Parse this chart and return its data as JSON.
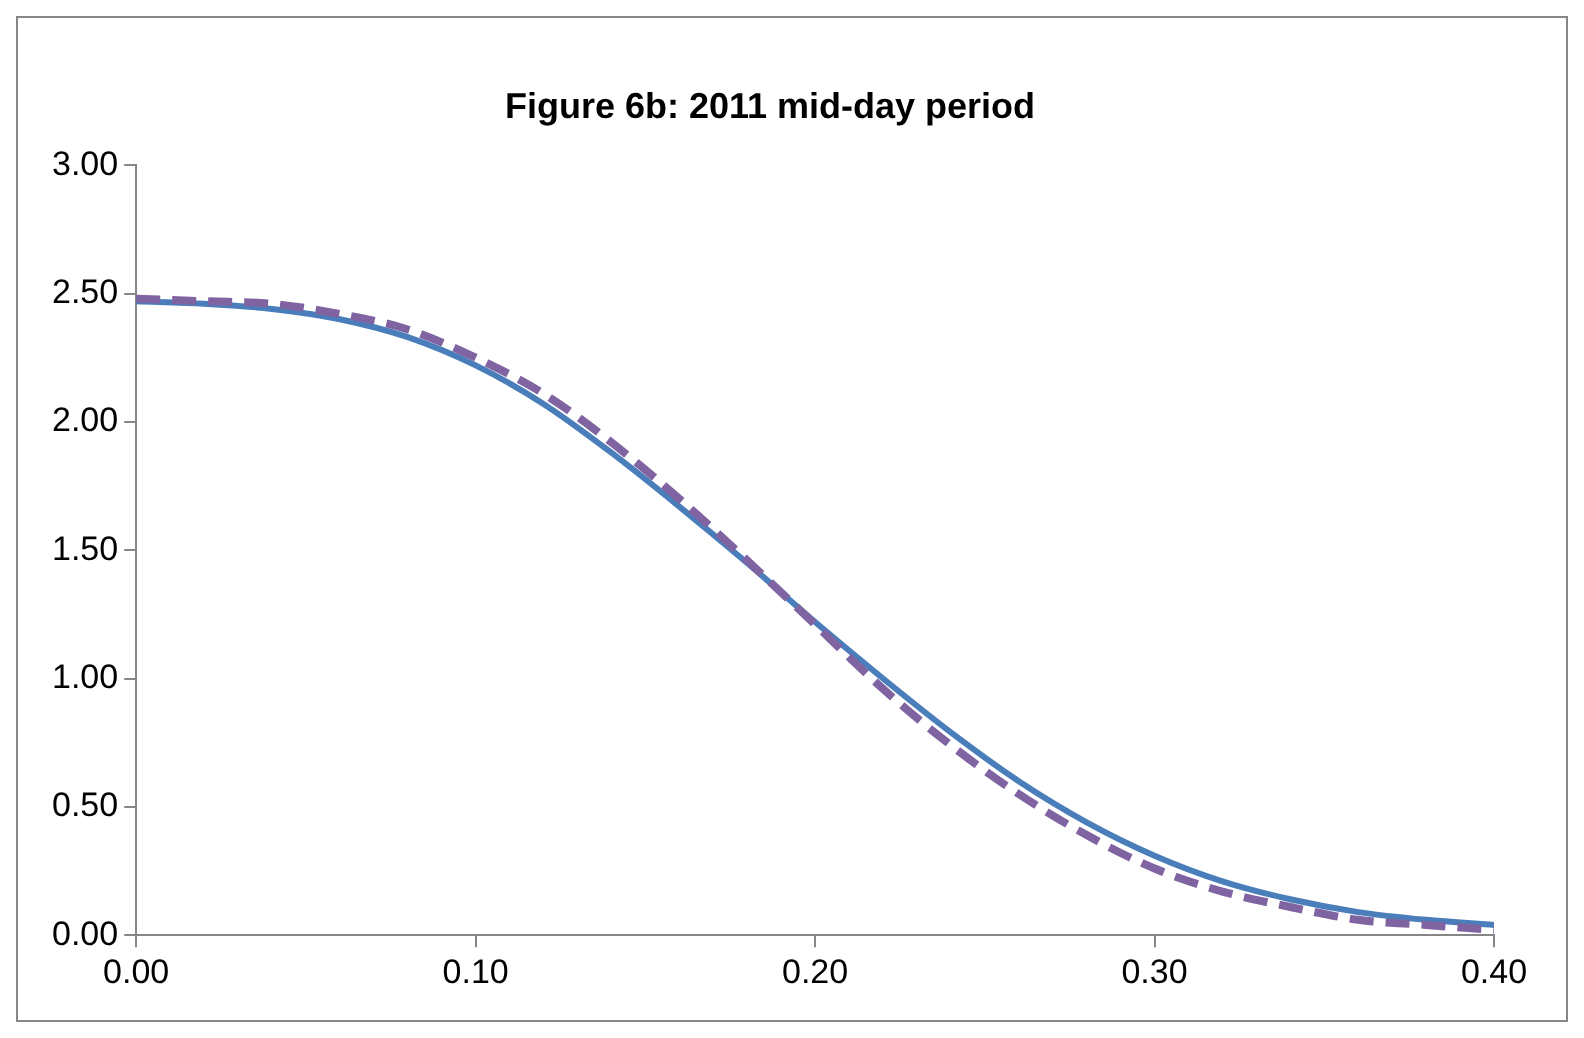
{
  "chart_data": {
    "type": "line",
    "title": "Figure 6b: 2011 mid-day period",
    "x": [
      0,
      0.02,
      0.04,
      0.06,
      0.08,
      0.1,
      0.12,
      0.14,
      0.16,
      0.18,
      0.2,
      0.22,
      0.24,
      0.26,
      0.28,
      0.3,
      0.32,
      0.34,
      0.36,
      0.38,
      0.4
    ],
    "series": [
      {
        "color": "#4a7ebb",
        "line_style": "solid",
        "values": [
          2.47,
          2.46,
          2.44,
          2.4,
          2.33,
          2.22,
          2.07,
          1.88,
          1.67,
          1.45,
          1.22,
          1.0,
          0.79,
          0.6,
          0.44,
          0.31,
          0.21,
          0.14,
          0.09,
          0.06,
          0.04
        ]
      },
      {
        "color": "#8064a2",
        "line_style": "dashed",
        "values": [
          2.48,
          2.47,
          2.46,
          2.42,
          2.36,
          2.25,
          2.11,
          1.92,
          1.7,
          1.46,
          1.21,
          0.96,
          0.74,
          0.55,
          0.39,
          0.26,
          0.17,
          0.11,
          0.06,
          0.04,
          0.02
        ]
      }
    ],
    "xlim": [
      0,
      0.4
    ],
    "xticks": [
      {
        "value": 0,
        "label": "0.00"
      },
      {
        "value": 0.1,
        "label": "0.10"
      },
      {
        "value": 0.2,
        "label": "0.20"
      },
      {
        "value": 0.3,
        "label": "0.30"
      },
      {
        "value": 0.4,
        "label": "0.40"
      }
    ],
    "ylim": [
      0,
      3
    ],
    "yticks": [
      {
        "value": 0,
        "label": "0.00"
      },
      {
        "value": 0.5,
        "label": "0.50"
      },
      {
        "value": 1,
        "label": "1.00"
      },
      {
        "value": 1.5,
        "label": "1.50"
      },
      {
        "value": 2,
        "label": "2.00"
      },
      {
        "value": 2.5,
        "label": "2.50"
      },
      {
        "value": 3,
        "label": "3.00"
      }
    ],
    "grid": false,
    "legend": false,
    "marker": "none"
  }
}
